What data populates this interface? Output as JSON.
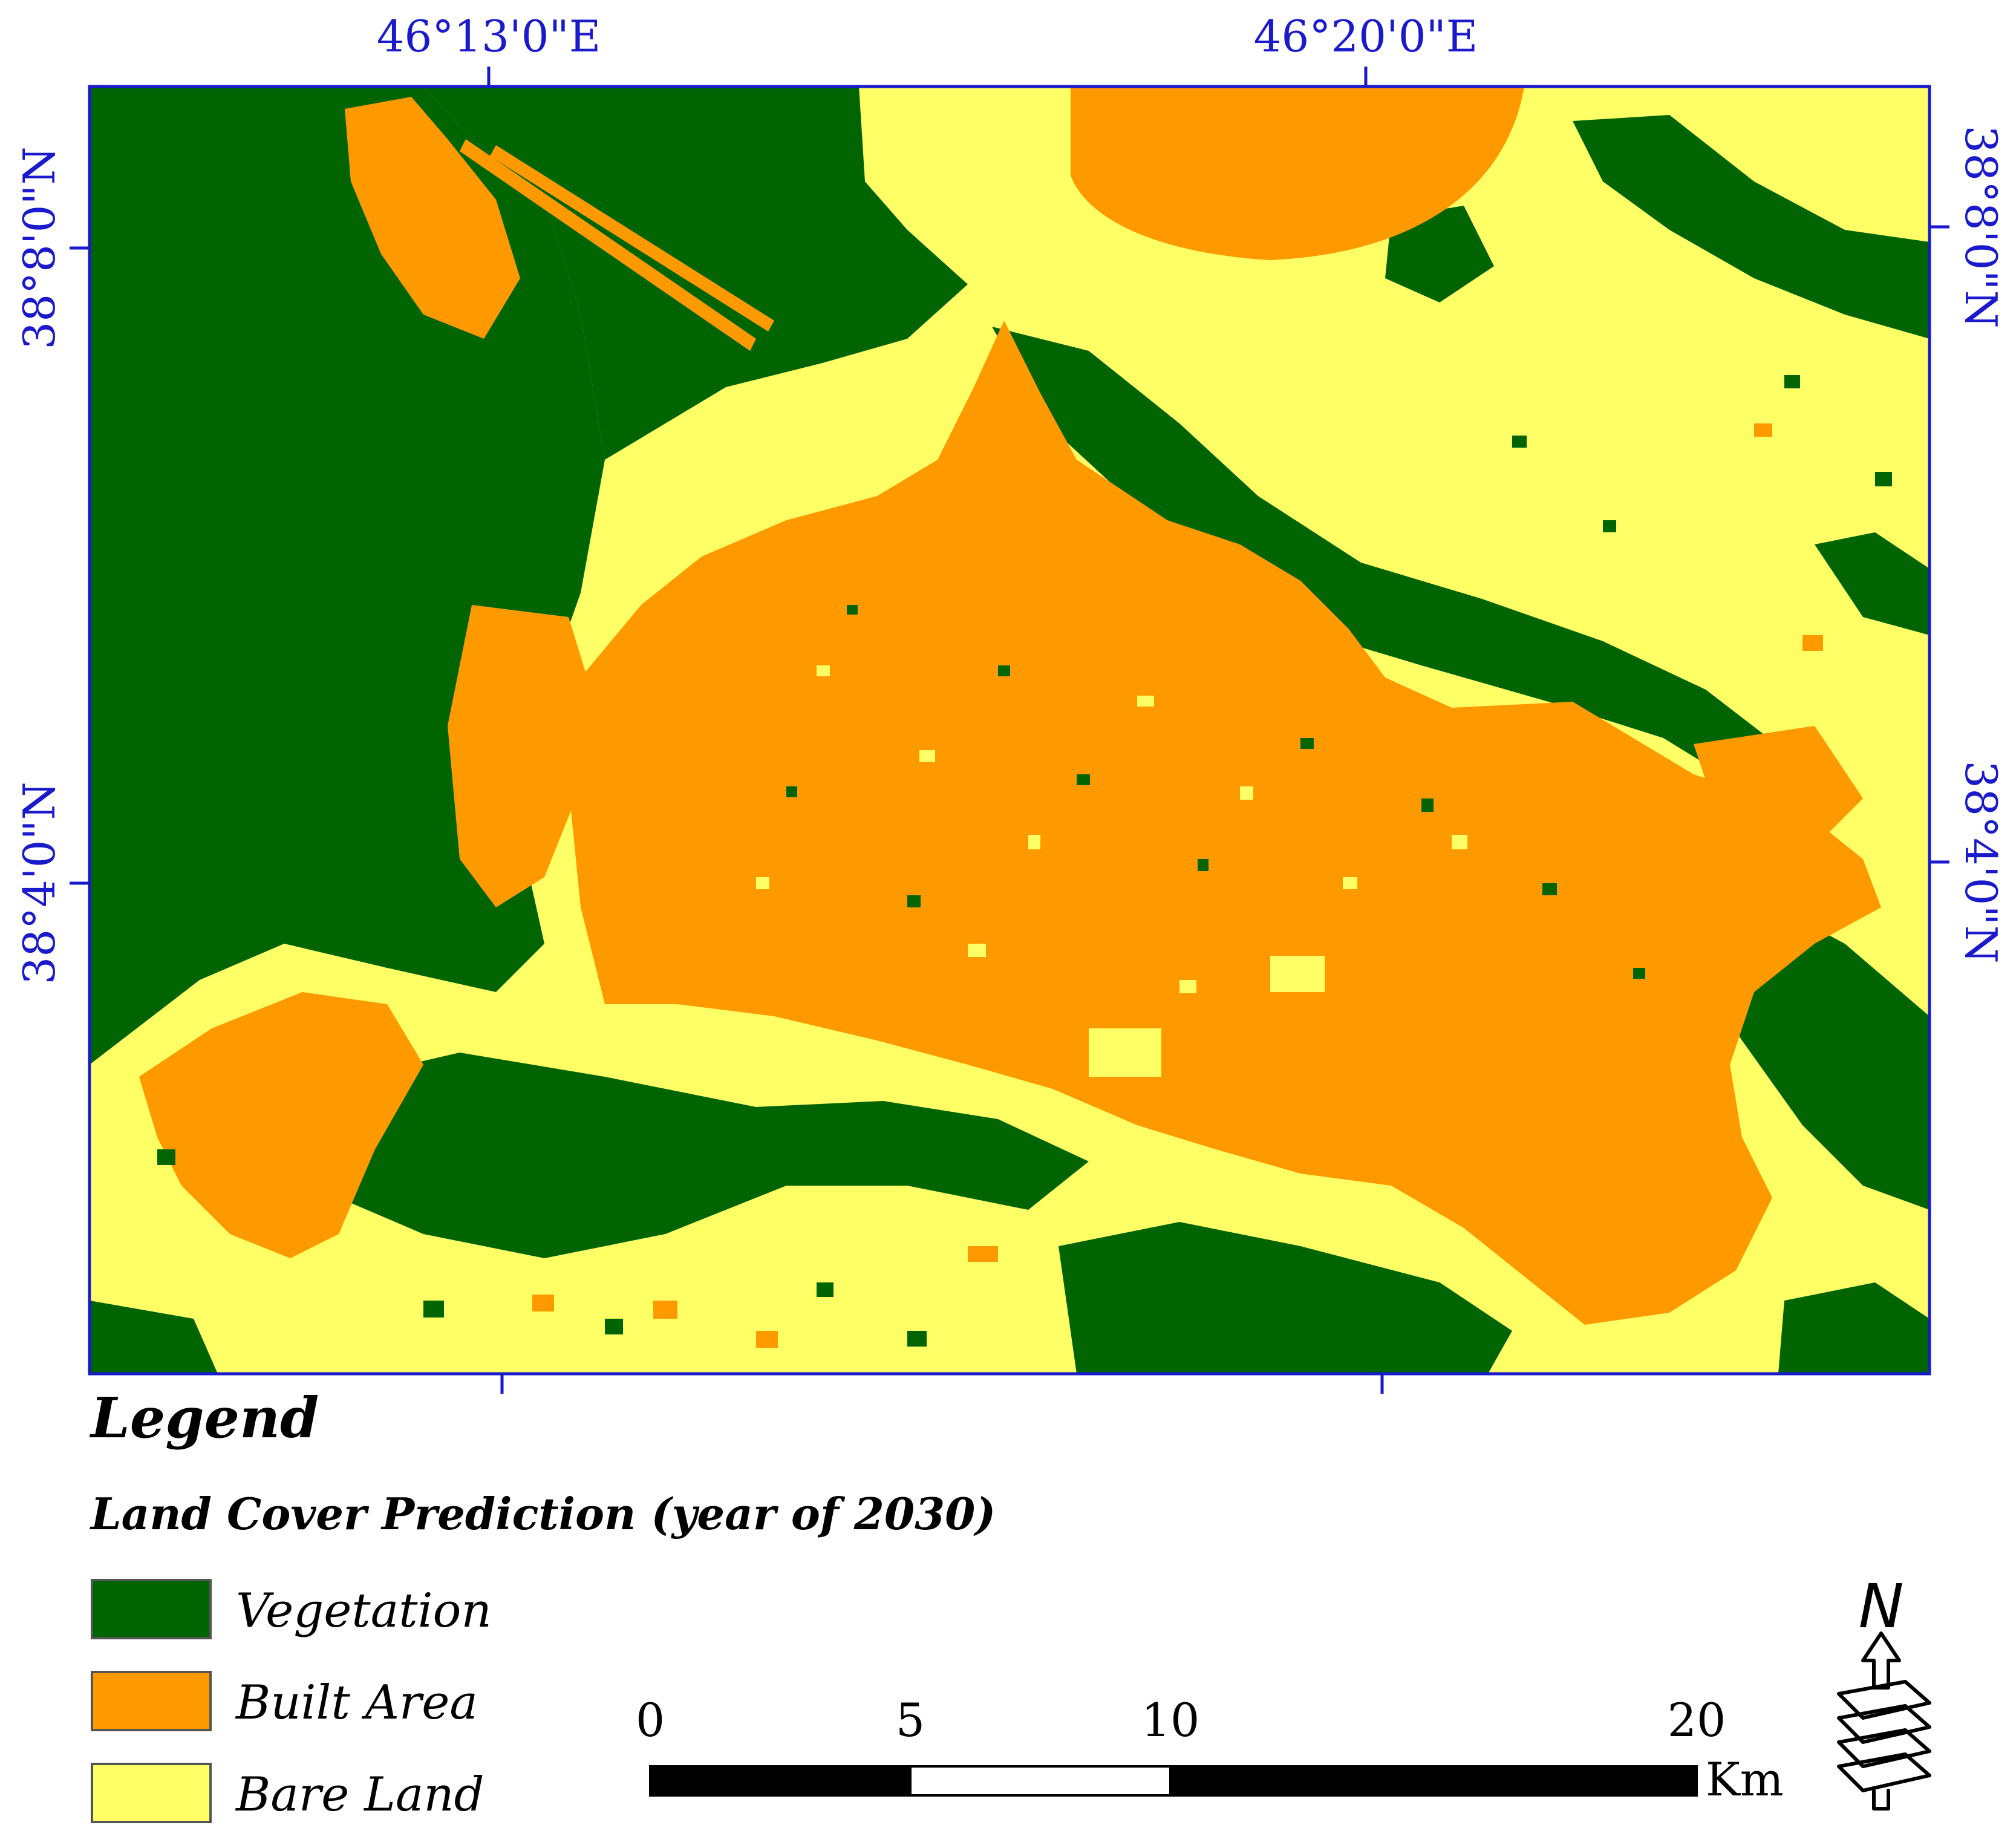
{
  "map": {
    "top_labels": [
      "46°13'0\"E",
      "46°20'0\"E"
    ],
    "left_labels": [
      "38°8'0\"N",
      "38°4'0\"N"
    ],
    "right_labels": [
      "38°8'0\"N",
      "38°4'0\"N"
    ]
  },
  "legend": {
    "title": "Legend",
    "subtitle": "Land Cover Prediction (year of 2030)",
    "items": [
      {
        "label": "Vegetation",
        "color": "#006400"
      },
      {
        "label": "Built Area",
        "color": "#ff9900"
      },
      {
        "label": "Bare Land",
        "color": "#ffff66"
      }
    ]
  },
  "scalebar": {
    "ticks": [
      "0",
      "5",
      "10",
      "20"
    ],
    "unit": "Km"
  },
  "north_arrow": {
    "label": "N",
    "icon": "north-arrow-icon"
  }
}
